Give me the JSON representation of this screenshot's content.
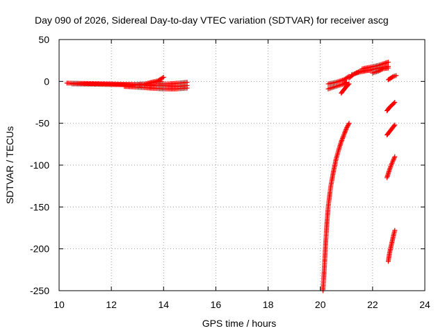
{
  "chart_data": {
    "type": "scatter",
    "title": "Day 090 of 2026, Sidereal Day-to-day VTEC variation (SDTVAR) for receiver ascg",
    "xlabel": "GPS time / hours",
    "ylabel": "SDTVAR / TECUs",
    "xlim": [
      10,
      24
    ],
    "ylim": [
      -250,
      50
    ],
    "xticks": [
      10,
      12,
      14,
      16,
      18,
      20,
      22,
      24
    ],
    "yticks": [
      -250,
      -200,
      -150,
      -100,
      -50,
      0,
      50
    ],
    "grid": true,
    "marker": "+",
    "color": "#ff0000",
    "series": [
      {
        "name": "s1",
        "x": [
          10.3,
          11.0,
          12.0,
          13.0,
          13.6
        ],
        "y": [
          -2,
          -2.5,
          -3,
          -4,
          -4
        ]
      },
      {
        "name": "s2",
        "x": [
          10.5,
          11.5,
          12.5,
          13.3,
          13.9
        ],
        "y": [
          -3,
          -3.5,
          -4,
          -3,
          0
        ]
      },
      {
        "name": "s3",
        "x": [
          12.8,
          13.3,
          13.8,
          14.0
        ],
        "y": [
          -5,
          -3,
          1,
          5
        ]
      },
      {
        "name": "s4",
        "x": [
          12.5,
          13.0,
          13.5,
          14.0,
          14.5,
          14.9
        ],
        "y": [
          -6,
          -7,
          -8,
          -9,
          -9,
          -8
        ]
      },
      {
        "name": "s5",
        "x": [
          13.0,
          13.5,
          14.0,
          14.5,
          14.9
        ],
        "y": [
          -4,
          -5,
          -5,
          -6,
          -5
        ]
      },
      {
        "name": "s6",
        "x": [
          13.8,
          14.2,
          14.6,
          14.9
        ],
        "y": [
          -3,
          -3,
          -2,
          -1
        ]
      },
      {
        "name": "s7",
        "x": [
          20.1,
          20.15,
          20.2,
          20.25,
          20.3,
          20.4,
          20.5,
          20.6,
          20.7,
          20.8,
          20.9,
          21.0,
          21.1
        ],
        "y": [
          -250,
          -225,
          -195,
          -170,
          -150,
          -125,
          -108,
          -93,
          -82,
          -72,
          -64,
          -56,
          -50
        ]
      },
      {
        "name": "s8",
        "x": [
          20.3,
          20.6,
          20.9,
          21.1
        ],
        "y": [
          -3,
          -1,
          2,
          6
        ]
      },
      {
        "name": "s9",
        "x": [
          20.3,
          20.6,
          20.9,
          21.0
        ],
        "y": [
          -9,
          -6,
          -3,
          -1
        ]
      },
      {
        "name": "s10",
        "x": [
          20.8,
          20.9,
          21.0,
          21.1
        ],
        "y": [
          -14,
          -10,
          -6,
          -3
        ]
      },
      {
        "name": "s11",
        "x": [
          21.1,
          21.3,
          21.5,
          21.7,
          21.9
        ],
        "y": [
          4,
          9,
          12,
          13,
          13
        ]
      },
      {
        "name": "s12",
        "x": [
          21.2,
          21.5,
          21.8,
          22.1,
          22.4,
          22.6
        ],
        "y": [
          8,
          11,
          13,
          15,
          17,
          18
        ]
      },
      {
        "name": "s13",
        "x": [
          21.6,
          21.9,
          22.2,
          22.4,
          22.6
        ],
        "y": [
          15,
          17,
          19,
          21,
          23
        ]
      },
      {
        "name": "s14",
        "x": [
          22.0,
          22.2,
          22.4,
          22.6
        ],
        "y": [
          10,
          12,
          15,
          16
        ]
      },
      {
        "name": "s15",
        "x": [
          22.6,
          22.7,
          22.8,
          22.9
        ],
        "y": [
          2,
          4,
          6,
          7
        ]
      },
      {
        "name": "s16",
        "x": [
          22.55,
          22.65,
          22.75,
          22.85
        ],
        "y": [
          -35,
          -31,
          -28,
          -25
        ]
      },
      {
        "name": "s17",
        "x": [
          22.55,
          22.65,
          22.75,
          22.85
        ],
        "y": [
          -64,
          -60,
          -56,
          -52
        ]
      },
      {
        "name": "s18",
        "x": [
          22.55,
          22.62,
          22.7,
          22.78,
          22.85
        ],
        "y": [
          -115,
          -108,
          -101,
          -95,
          -90
        ]
      },
      {
        "name": "s19",
        "x": [
          22.6,
          22.65,
          22.7,
          22.75,
          22.8,
          22.85
        ],
        "y": [
          -215,
          -205,
          -198,
          -191,
          -184,
          -178
        ]
      }
    ]
  }
}
